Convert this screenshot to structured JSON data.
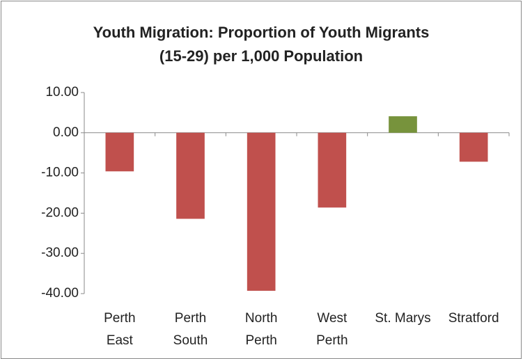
{
  "chart_data": {
    "type": "bar",
    "title": [
      "Youth Migration: Proportion of Youth Migrants",
      "(15-29) per 1,000 Population"
    ],
    "categories": [
      "Perth East",
      "Perth South",
      "North Perth",
      "West Perth",
      "St. Marys",
      "Stratford"
    ],
    "values": [
      -9.6,
      -21.4,
      -39.3,
      -18.6,
      4.1,
      -7.2
    ],
    "colors": [
      "#c0504d",
      "#c0504d",
      "#c0504d",
      "#c0504d",
      "#77933c",
      "#c0504d"
    ],
    "ylim": [
      -40,
      10
    ],
    "yticks": [
      {
        "value": 10,
        "label": "10.00"
      },
      {
        "value": 0,
        "label": "0.00"
      },
      {
        "value": -10,
        "label": "-10.00"
      },
      {
        "value": -20,
        "label": "-20.00"
      },
      {
        "value": -30,
        "label": "-30.00"
      },
      {
        "value": -40,
        "label": "-40.00"
      }
    ],
    "grid": false
  }
}
